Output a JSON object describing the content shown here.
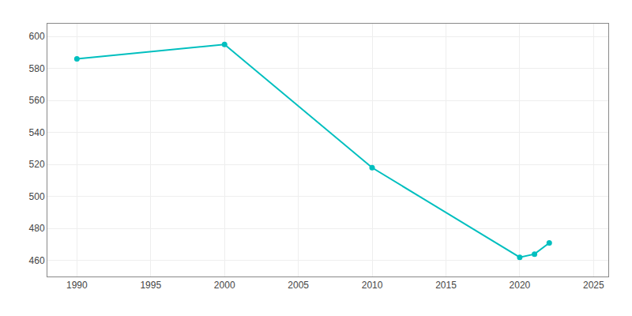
{
  "chart_data": {
    "type": "line",
    "x": [
      1990,
      2000,
      2010,
      2020,
      2021,
      2022
    ],
    "values": [
      586,
      595,
      518,
      462,
      464,
      471
    ],
    "color": "#00BFBF",
    "marker": "circle",
    "xlim": [
      1988,
      2026
    ],
    "ylim": [
      450,
      608
    ],
    "xticks": [
      1990,
      1995,
      2000,
      2005,
      2010,
      2015,
      2020,
      2025
    ],
    "yticks": [
      460,
      480,
      500,
      520,
      540,
      560,
      580,
      600
    ],
    "grid": true
  }
}
